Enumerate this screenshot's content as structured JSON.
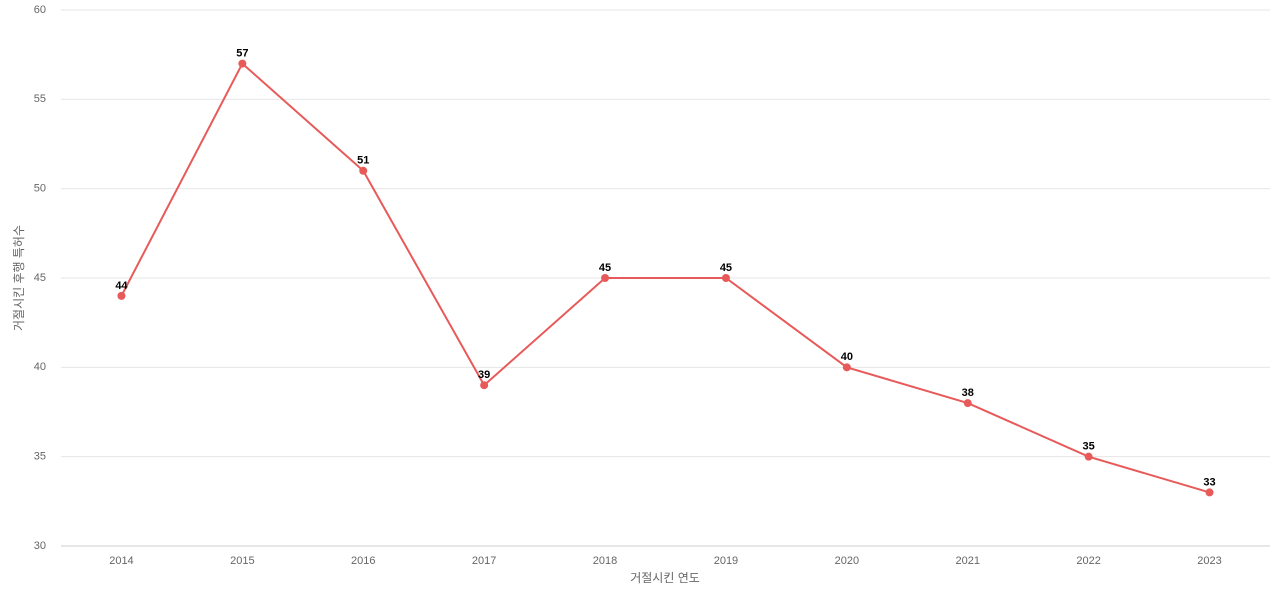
{
  "chart_data": {
    "type": "line",
    "x_label": "거절시킨 연도",
    "y_label": "거절시킨 후행 특허수",
    "categories": [
      "2014",
      "2015",
      "2016",
      "2017",
      "2018",
      "2019",
      "2020",
      "2021",
      "2022",
      "2023"
    ],
    "series": [
      {
        "name": "거절시킨 후행 특허수",
        "color": "#e85a5a",
        "values": [
          44,
          57,
          51,
          39,
          45,
          45,
          40,
          38,
          35,
          33
        ]
      }
    ],
    "ylim": [
      30,
      60
    ],
    "yticks": [
      30,
      35,
      40,
      45,
      50,
      55,
      60
    ],
    "grid": true
  }
}
